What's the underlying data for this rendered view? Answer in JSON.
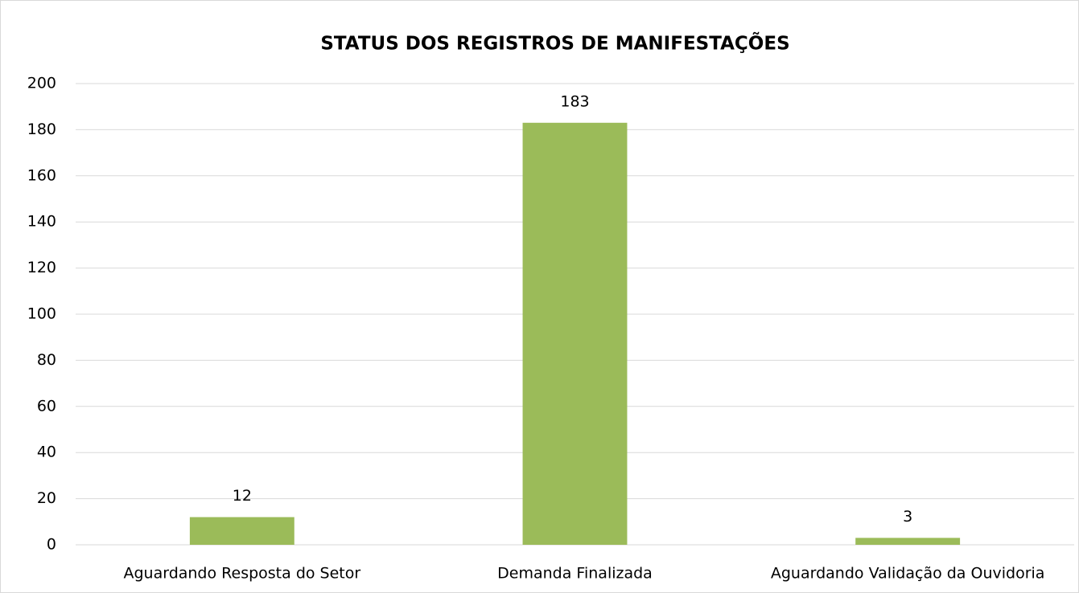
{
  "chart_data": {
    "type": "bar",
    "title": "STATUS DOS REGISTROS DE MANIFESTAÇÕES",
    "categories": [
      "Aguardando Resposta do Setor",
      "Demanda Finalizada",
      "Aguardando Validação da Ouvidoria"
    ],
    "values": [
      12,
      183,
      3
    ],
    "color": "#9bbb59",
    "ylim": [
      0,
      200
    ],
    "yticks": [
      0,
      20,
      40,
      60,
      80,
      100,
      120,
      140,
      160,
      180,
      200
    ],
    "grid": true,
    "data_labels": true
  }
}
